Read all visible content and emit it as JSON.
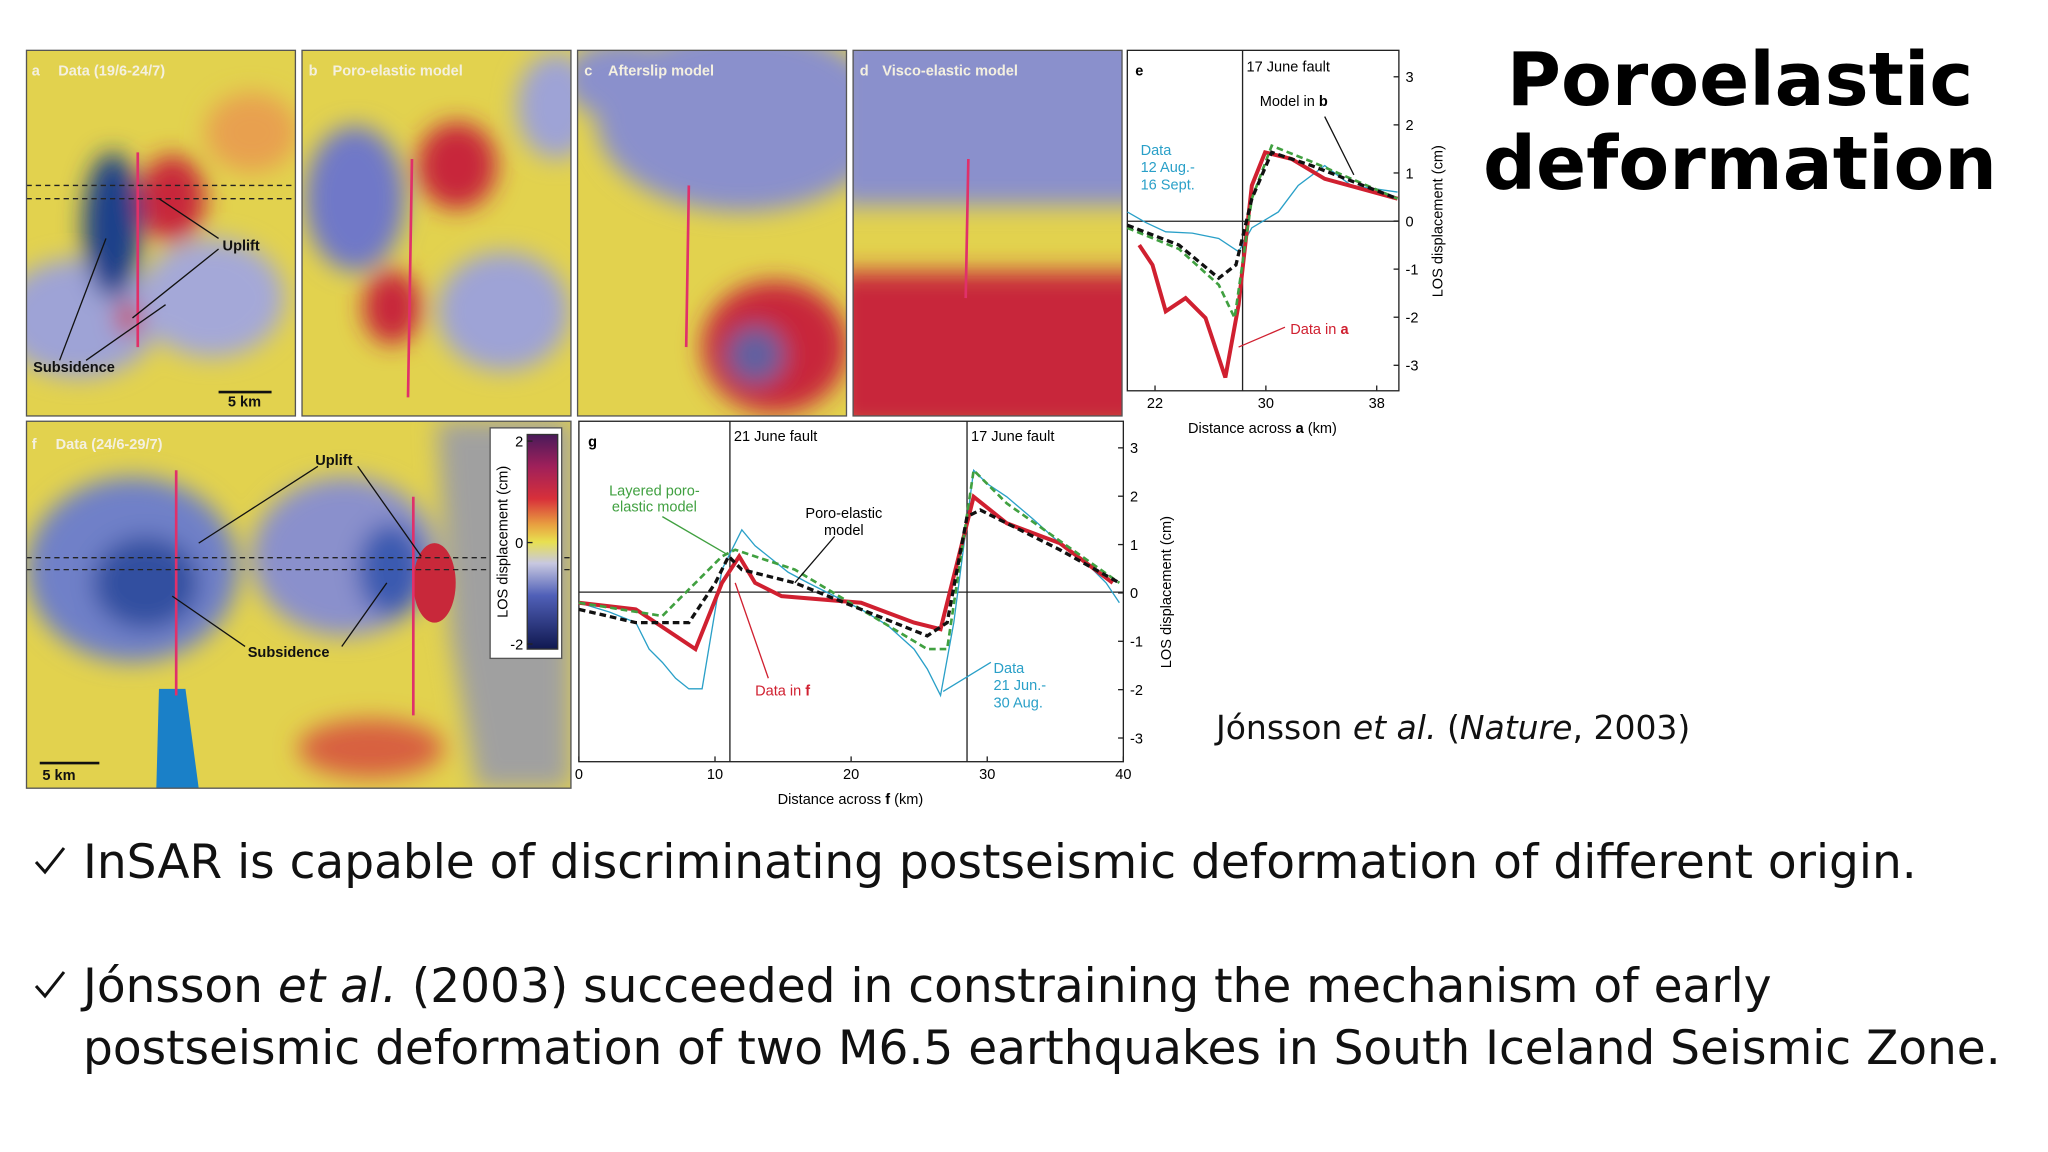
{
  "title": "Poroelastic deformation",
  "citation": [
    "Jónsson ",
    "et al.",
    " (",
    "Nature",
    ", 2003)"
  ],
  "bullets": [
    [
      "InSAR is capable of discriminating postseismic deformation of different origin."
    ],
    [
      "Jónsson ",
      "et al.",
      " (2003) succeeded in constraining the mechanism of early postseismic deformation of two M6.5 earthquakes in South Iceland Seismic Zone."
    ]
  ],
  "figure": {
    "a": {
      "label": "a",
      "title": "Data (19/6-24/7)",
      "uplift": "Uplift",
      "subsidence": "Subsidence",
      "scale": "5 km"
    },
    "b": {
      "label": "b",
      "title": "Poro-elastic model"
    },
    "c": {
      "label": "c",
      "title": "Afterslip model"
    },
    "d": {
      "label": "d",
      "title": "Visco-elastic model"
    },
    "e": {
      "label": "e",
      "fault": "17 June fault",
      "model": [
        "Model in ",
        "b"
      ],
      "data_blue": [
        "Data",
        "12 Aug.-",
        "16 Sept."
      ],
      "data_red": [
        "Data in ",
        "a"
      ],
      "xlabel": [
        "Distance across ",
        "a",
        " (km)"
      ],
      "ylabel": "LOS displacement (cm)",
      "xlim": [
        20,
        39.6
      ],
      "ylim": [
        -3.53,
        3.55
      ],
      "xticks": [
        22,
        30,
        38
      ],
      "yticks": [
        3,
        2,
        1,
        0,
        -1,
        -2,
        -3
      ]
    },
    "f": {
      "label": "f",
      "title": "Data (24/6-29/7)",
      "uplift": "Uplift",
      "subsidence": "Subsidence",
      "scale": "5 km",
      "colorbar": {
        "label": "LOS displacement (cm)",
        "lim": [
          -2.1,
          2.13
        ],
        "ticks": [
          2,
          0,
          -2
        ]
      }
    },
    "g": {
      "label": "g",
      "fault1": "21 June fault",
      "fault2": "17 June fault",
      "layered": [
        "Layered poro-",
        "elastic model"
      ],
      "poro": [
        "Poro-elastic",
        "model"
      ],
      "data_red": [
        "Data in ",
        "f"
      ],
      "data_blue": [
        "Data",
        "21 Jun.-",
        "30 Aug."
      ],
      "xlabel": [
        "Distance across ",
        "f",
        " (km)"
      ],
      "ylabel": "LOS displacement (cm)",
      "xlim": [
        0,
        40
      ],
      "ylim": [
        -3.49,
        3.55
      ],
      "xticks": [
        0,
        10,
        20,
        30,
        40
      ],
      "yticks": [
        3,
        2,
        1,
        0,
        -1,
        -2,
        -3
      ]
    }
  }
}
